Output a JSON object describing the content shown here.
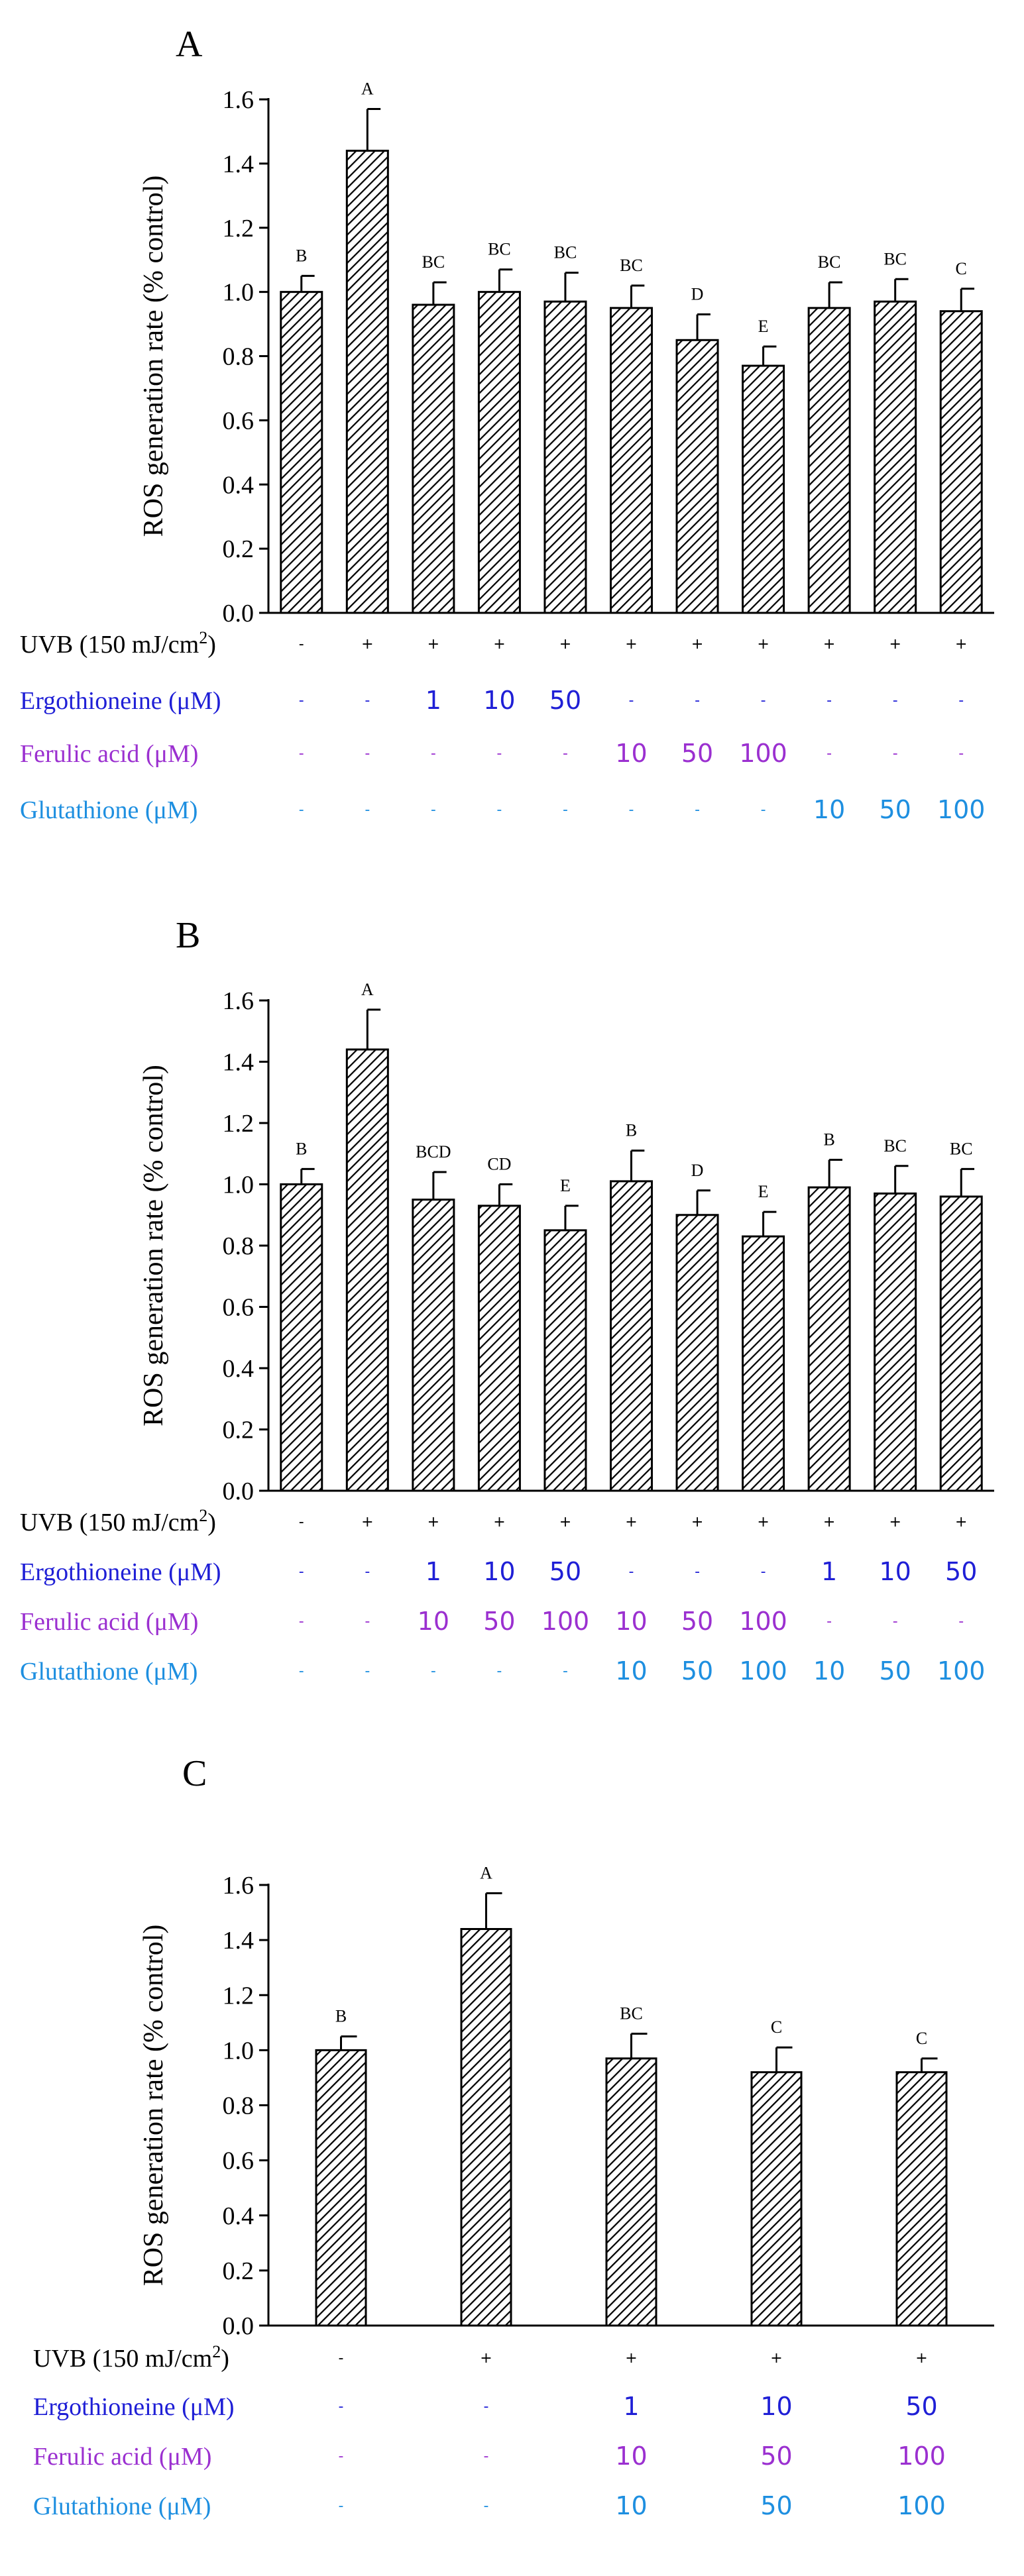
{
  "colors": {
    "uvb": "#000000",
    "ergothioneine": "#1f1fd6",
    "ferulic": "#9b30d0",
    "glutathione": "#1e8fe0"
  },
  "chart_data": [
    {
      "type": "bar",
      "panel": "A",
      "ylabel": "ROS generation rate (% control)",
      "ylim": [
        0,
        1.6
      ],
      "yticks": [
        "0.0",
        "0.2",
        "0.4",
        "0.6",
        "0.8",
        "1.0",
        "1.2",
        "1.4",
        "1.6"
      ],
      "values": [
        1.0,
        1.44,
        0.96,
        1.0,
        0.97,
        0.95,
        0.85,
        0.77,
        0.95,
        0.97,
        0.94
      ],
      "errors": [
        0.05,
        0.13,
        0.07,
        0.07,
        0.09,
        0.07,
        0.08,
        0.06,
        0.08,
        0.07,
        0.07
      ],
      "letters": [
        "B",
        "A",
        "BC",
        "BC",
        "BC",
        "BC",
        "D",
        "E",
        "BC",
        "BC",
        "C"
      ],
      "table": [
        {
          "label": "UVB (150 mJ/cm",
          "sup": "2",
          "label_end": ")",
          "color_key": "uvb",
          "cells": [
            "-",
            "+",
            "+",
            "+",
            "+",
            "+",
            "+",
            "+",
            "+",
            "+",
            "+"
          ]
        },
        {
          "label": "Ergothioneine (μM)",
          "color_key": "ergothioneine",
          "cells": [
            "-",
            "-",
            "1",
            "10",
            "50",
            "-",
            "-",
            "-",
            "-",
            "-",
            "-"
          ]
        },
        {
          "label": "Ferulic acid (μM)",
          "color_key": "ferulic",
          "cells": [
            "-",
            "-",
            "-",
            "-",
            "-",
            "10",
            "50",
            "100",
            "-",
            "-",
            "-"
          ]
        },
        {
          "label": "Glutathione (μM)",
          "color_key": "glutathione",
          "cells": [
            "-",
            "-",
            "-",
            "-",
            "-",
            "-",
            "-",
            "-",
            "10",
            "50",
            "100"
          ]
        }
      ]
    },
    {
      "type": "bar",
      "panel": "B",
      "ylabel": "ROS generation rate (% control)",
      "ylim": [
        0,
        1.6
      ],
      "yticks": [
        "0.0",
        "0.2",
        "0.4",
        "0.6",
        "0.8",
        "1.0",
        "1.2",
        "1.4",
        "1.6"
      ],
      "values": [
        1.0,
        1.44,
        0.95,
        0.93,
        0.85,
        1.01,
        0.9,
        0.83,
        0.99,
        0.97,
        0.96
      ],
      "errors": [
        0.05,
        0.13,
        0.09,
        0.07,
        0.08,
        0.1,
        0.08,
        0.08,
        0.09,
        0.09,
        0.09
      ],
      "letters": [
        "B",
        "A",
        "BCD",
        "CD",
        "E",
        "B",
        "D",
        "E",
        "B",
        "BC",
        "BC"
      ],
      "table": [
        {
          "label": "UVB (150 mJ/cm",
          "sup": "2",
          "label_end": ")",
          "color_key": "uvb",
          "cells": [
            "-",
            "+",
            "+",
            "+",
            "+",
            "+",
            "+",
            "+",
            "+",
            "+",
            "+"
          ]
        },
        {
          "label": "Ergothioneine (μM)",
          "color_key": "ergothioneine",
          "cells": [
            "-",
            "-",
            "1",
            "10",
            "50",
            "-",
            "-",
            "-",
            "1",
            "10",
            "50"
          ]
        },
        {
          "label": "Ferulic acid (μM)",
          "color_key": "ferulic",
          "cells": [
            "-",
            "-",
            "10",
            "50",
            "100",
            "10",
            "50",
            "100",
            "-",
            "-",
            "-"
          ]
        },
        {
          "label": "Glutathione (μM)",
          "color_key": "glutathione",
          "cells": [
            "-",
            "-",
            "-",
            "-",
            "-",
            "10",
            "50",
            "100",
            "10",
            "50",
            "100"
          ]
        }
      ]
    },
    {
      "type": "bar",
      "panel": "C",
      "ylabel": "ROS generation rate (% control)",
      "ylim": [
        0,
        1.6
      ],
      "yticks": [
        "0.0",
        "0.2",
        "0.4",
        "0.6",
        "0.8",
        "1.0",
        "1.2",
        "1.4",
        "1.6"
      ],
      "values": [
        1.0,
        1.44,
        0.97,
        0.92,
        0.92
      ],
      "errors": [
        0.05,
        0.13,
        0.09,
        0.09,
        0.05
      ],
      "letters": [
        "B",
        "A",
        "BC",
        "C",
        "C"
      ],
      "table": [
        {
          "label": "UVB (150 mJ/cm",
          "sup": "2",
          "label_end": ")",
          "color_key": "uvb",
          "cells": [
            "-",
            "+",
            "+",
            "+",
            "+"
          ]
        },
        {
          "label": "Ergothioneine (μM)",
          "color_key": "ergothioneine",
          "cells": [
            "-",
            "-",
            "1",
            "10",
            "50"
          ]
        },
        {
          "label": "Ferulic acid (μM)",
          "color_key": "ferulic",
          "cells": [
            "-",
            "-",
            "10",
            "50",
            "100"
          ]
        },
        {
          "label": "Glutathione (μM)",
          "color_key": "glutathione",
          "cells": [
            "-",
            "-",
            "10",
            "50",
            "100"
          ]
        }
      ]
    }
  ]
}
